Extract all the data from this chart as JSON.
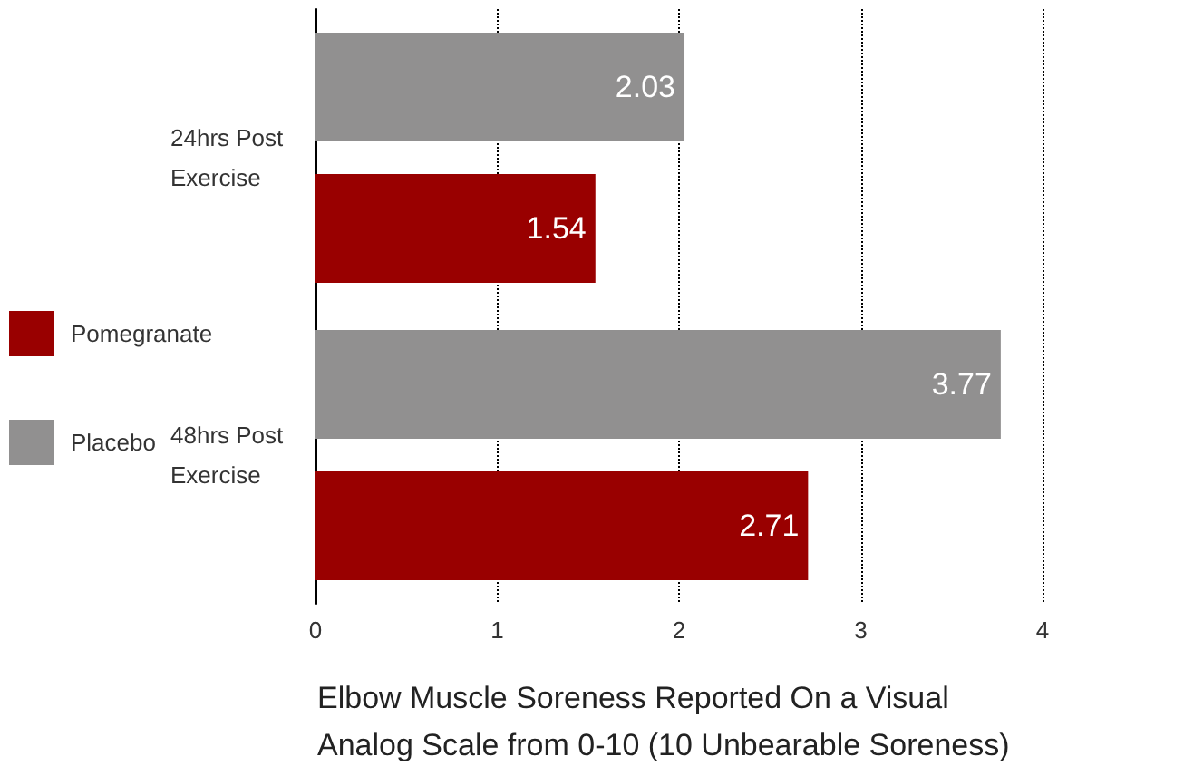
{
  "chart_data": {
    "type": "bar",
    "orientation": "horizontal",
    "xlabel": "Elbow Muscle Soreness Reported On a Visual Analog Scale from 0-10 (10 Unbearable Soreness)",
    "categories": [
      "24hrs Post Exercise",
      "48hrs Post Exercise"
    ],
    "series": [
      {
        "name": "Placebo",
        "color": "#919090",
        "values": [
          2.03,
          3.77
        ]
      },
      {
        "name": "Pomegranate",
        "color": "#990000",
        "values": [
          1.54,
          2.71
        ]
      }
    ],
    "xlim": [
      0,
      4
    ],
    "xticks": [
      0,
      1,
      2,
      3,
      4
    ],
    "grid": "x",
    "legend": "left",
    "data_labels": true
  }
}
